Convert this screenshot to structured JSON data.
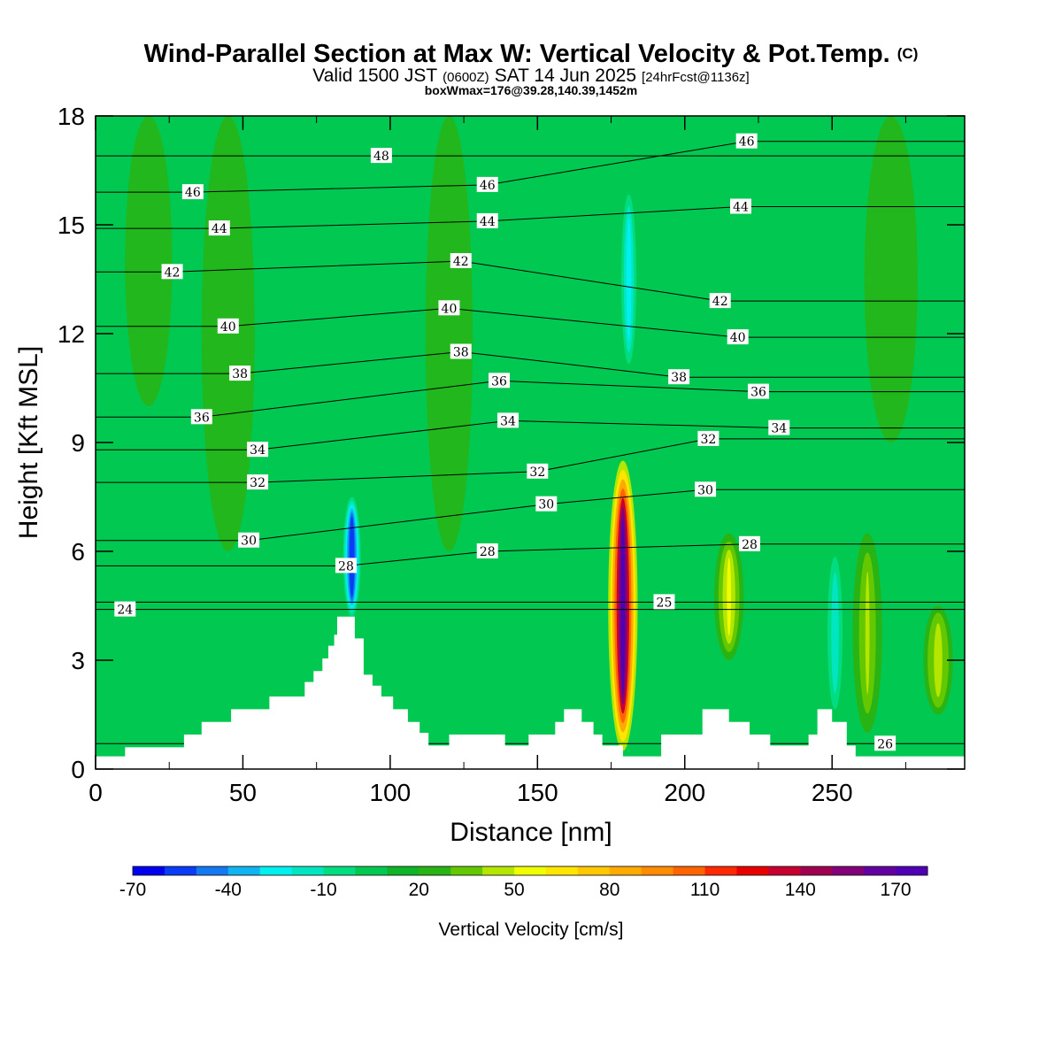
{
  "titles": {
    "main": "Wind-Parallel Section at Max W: Vertical Velocity & Pot.Temp.",
    "copyright": "(C)",
    "valid_prefix": "Valid 1500 JST",
    "valid_utc": "(0600Z)",
    "valid_date": "SAT 14 Jun 2025",
    "forecast": "[24hrFcst@1136z]",
    "boxwmax": "boxWmax=176@39.28,140.39,1452m"
  },
  "colorbar": {
    "title": "Vertical Velocity [cm/s]",
    "tick_labels": [
      "-70",
      "-40",
      "-10",
      "20",
      "50",
      "80",
      "110",
      "140",
      "170"
    ],
    "levels": [
      -70,
      -60,
      -50,
      -40,
      -30,
      -20,
      -10,
      0,
      10,
      20,
      30,
      40,
      50,
      60,
      70,
      80,
      90,
      100,
      110,
      120,
      130,
      140,
      150,
      160,
      170,
      180
    ],
    "colors": [
      "#0000ee",
      "#0a3cf5",
      "#1478f0",
      "#10b4f0",
      "#00f0f0",
      "#00e6c0",
      "#00dc80",
      "#00c850",
      "#10b428",
      "#28b414",
      "#64c800",
      "#b4e600",
      "#f0ff00",
      "#ffe600",
      "#ffc800",
      "#ffaa00",
      "#ff8c00",
      "#ff6400",
      "#ff2800",
      "#e60000",
      "#c80032",
      "#a00050",
      "#820078",
      "#6400a0",
      "#5000b4"
    ]
  },
  "chart_data": {
    "type": "heatmap",
    "title": "Wind-Parallel Section at Max W: Vertical Velocity & Pot.Temp.",
    "xlabel": "Distance [nm]",
    "ylabel": "Height [Kft MSL]",
    "xlim": [
      0,
      295
    ],
    "ylim": [
      0,
      18
    ],
    "x_ticks": [
      0,
      50,
      100,
      150,
      200,
      250
    ],
    "y_ticks": [
      0,
      3,
      6,
      9,
      12,
      15,
      18
    ],
    "grid": false,
    "colorbar_title": "Vertical Velocity [cm/s]",
    "background_field": "green (10 to 20 cm/s) with weak cyan downdrafts",
    "updrafts": [
      {
        "x_nm": 179,
        "height_kft_min": 0.5,
        "height_kft_max": 8.5,
        "max_cm_s": 176
      },
      {
        "x_nm": 215,
        "height_kft_min": 3.0,
        "height_kft_max": 6.5,
        "max_cm_s": 50
      },
      {
        "x_nm": 262,
        "height_kft_min": 1.0,
        "height_kft_max": 6.5,
        "max_cm_s": 40
      },
      {
        "x_nm": 286,
        "height_kft_min": 1.5,
        "height_kft_max": 4.5,
        "max_cm_s": 45
      }
    ],
    "downdrafts": [
      {
        "x_nm": 87,
        "height_kft_min": 4.2,
        "height_kft_max": 7.5,
        "min_cm_s": -60
      },
      {
        "x_nm": 181,
        "height_kft_min": 11.0,
        "height_kft_max": 16.0,
        "min_cm_s": -30
      },
      {
        "x_nm": 251,
        "height_kft_min": 1.5,
        "height_kft_max": 6.0,
        "min_cm_s": -20
      }
    ],
    "terrain_kft": [
      [
        0,
        0.35
      ],
      [
        10,
        0.35
      ],
      [
        10,
        0.6
      ],
      [
        30,
        0.6
      ],
      [
        30,
        0.95
      ],
      [
        36,
        0.95
      ],
      [
        36,
        1.3
      ],
      [
        46,
        1.3
      ],
      [
        46,
        1.65
      ],
      [
        59,
        1.65
      ],
      [
        59,
        2.0
      ],
      [
        71,
        2.0
      ],
      [
        71,
        2.4
      ],
      [
        74,
        2.4
      ],
      [
        74,
        2.7
      ],
      [
        77,
        2.7
      ],
      [
        77,
        3.05
      ],
      [
        79,
        3.05
      ],
      [
        79,
        3.4
      ],
      [
        81,
        3.4
      ],
      [
        81,
        3.7
      ],
      [
        82,
        3.7
      ],
      [
        82,
        4.2
      ],
      [
        88,
        4.2
      ],
      [
        88,
        3.6
      ],
      [
        91,
        3.6
      ],
      [
        91,
        2.6
      ],
      [
        94,
        2.6
      ],
      [
        94,
        2.3
      ],
      [
        97,
        2.3
      ],
      [
        97,
        2.0
      ],
      [
        101,
        2.0
      ],
      [
        101,
        1.65
      ],
      [
        106,
        1.65
      ],
      [
        106,
        1.3
      ],
      [
        110,
        1.3
      ],
      [
        110,
        1.0
      ],
      [
        113,
        1.0
      ],
      [
        113,
        0.65
      ],
      [
        120,
        0.65
      ],
      [
        120,
        0.95
      ],
      [
        139,
        0.95
      ],
      [
        139,
        0.65
      ],
      [
        147,
        0.65
      ],
      [
        147,
        0.95
      ],
      [
        156,
        0.95
      ],
      [
        156,
        1.3
      ],
      [
        159,
        1.3
      ],
      [
        159,
        1.65
      ],
      [
        165,
        1.65
      ],
      [
        165,
        1.3
      ],
      [
        169,
        1.3
      ],
      [
        169,
        0.95
      ],
      [
        172,
        0.95
      ],
      [
        172,
        0.65
      ],
      [
        179,
        0.65
      ],
      [
        179,
        0.35
      ],
      [
        192,
        0.35
      ],
      [
        192,
        0.95
      ],
      [
        206,
        0.95
      ],
      [
        206,
        1.65
      ],
      [
        215,
        1.65
      ],
      [
        215,
        1.3
      ],
      [
        222,
        1.3
      ],
      [
        222,
        0.95
      ],
      [
        229,
        0.95
      ],
      [
        229,
        0.65
      ],
      [
        242,
        0.65
      ],
      [
        242,
        0.95
      ],
      [
        245,
        0.95
      ],
      [
        245,
        1.65
      ],
      [
        250,
        1.65
      ],
      [
        250,
        1.3
      ],
      [
        255,
        1.3
      ],
      [
        255,
        0.65
      ],
      [
        258,
        0.65
      ],
      [
        258,
        0.35
      ],
      [
        295,
        0.35
      ]
    ],
    "theta_contours": [
      {
        "label": "24",
        "x_nm": 10,
        "height_kft": 4.4
      },
      {
        "label": "25",
        "x_nm": 193,
        "height_kft": 4.6
      },
      {
        "label": "26",
        "x_nm": 268,
        "height_kft": 0.7
      },
      {
        "label": "28",
        "x_nm": 85,
        "height_kft": 5.6
      },
      {
        "label": "28",
        "x_nm": 133,
        "height_kft": 6.0
      },
      {
        "label": "28",
        "x_nm": 222,
        "height_kft": 6.2
      },
      {
        "label": "30",
        "x_nm": 52,
        "height_kft": 6.3
      },
      {
        "label": "30",
        "x_nm": 153,
        "height_kft": 7.3
      },
      {
        "label": "30",
        "x_nm": 207,
        "height_kft": 7.7
      },
      {
        "label": "32",
        "x_nm": 55,
        "height_kft": 7.9
      },
      {
        "label": "32",
        "x_nm": 150,
        "height_kft": 8.2
      },
      {
        "label": "32",
        "x_nm": 208,
        "height_kft": 9.1
      },
      {
        "label": "34",
        "x_nm": 55,
        "height_kft": 8.8
      },
      {
        "label": "34",
        "x_nm": 140,
        "height_kft": 9.6
      },
      {
        "label": "34",
        "x_nm": 232,
        "height_kft": 9.4
      },
      {
        "label": "36",
        "x_nm": 36,
        "height_kft": 9.7
      },
      {
        "label": "36",
        "x_nm": 137,
        "height_kft": 10.7
      },
      {
        "label": "36",
        "x_nm": 225,
        "height_kft": 10.4
      },
      {
        "label": "38",
        "x_nm": 49,
        "height_kft": 10.9
      },
      {
        "label": "38",
        "x_nm": 124,
        "height_kft": 11.5
      },
      {
        "label": "38",
        "x_nm": 198,
        "height_kft": 10.8
      },
      {
        "label": "40",
        "x_nm": 45,
        "height_kft": 12.2
      },
      {
        "label": "40",
        "x_nm": 120,
        "height_kft": 12.7
      },
      {
        "label": "40",
        "x_nm": 218,
        "height_kft": 11.9
      },
      {
        "label": "42",
        "x_nm": 26,
        "height_kft": 13.7
      },
      {
        "label": "42",
        "x_nm": 124,
        "height_kft": 14.0
      },
      {
        "label": "42",
        "x_nm": 212,
        "height_kft": 12.9
      },
      {
        "label": "44",
        "x_nm": 42,
        "height_kft": 14.9
      },
      {
        "label": "44",
        "x_nm": 133,
        "height_kft": 15.1
      },
      {
        "label": "44",
        "x_nm": 219,
        "height_kft": 15.5
      },
      {
        "label": "46",
        "x_nm": 33,
        "height_kft": 15.9
      },
      {
        "label": "46",
        "x_nm": 133,
        "height_kft": 16.1
      },
      {
        "label": "46",
        "x_nm": 221,
        "height_kft": 17.3
      },
      {
        "label": "48",
        "x_nm": 97,
        "height_kft": 16.9
      }
    ]
  }
}
